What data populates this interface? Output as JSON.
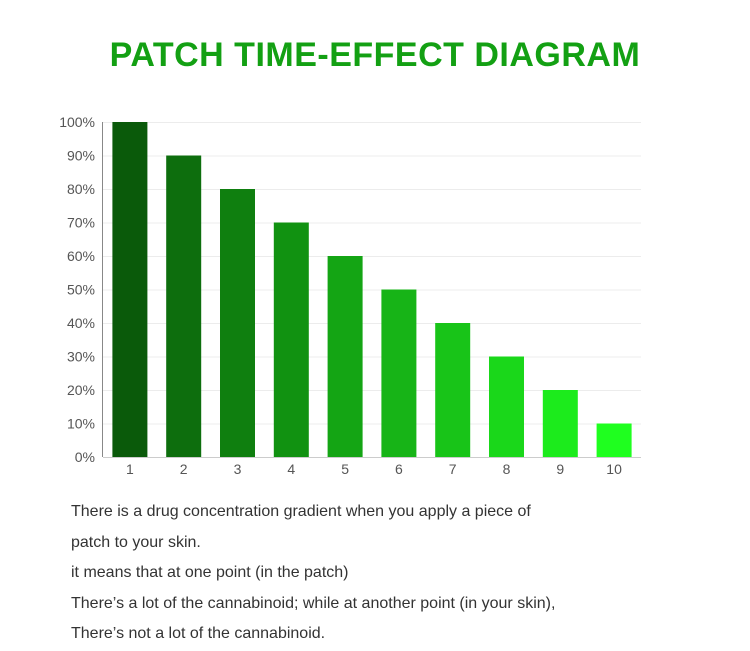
{
  "title": "PATCH TIME-EFFECT DIAGRAM",
  "chart_data": {
    "type": "bar",
    "categories": [
      "1",
      "2",
      "3",
      "4",
      "5",
      "6",
      "7",
      "8",
      "9",
      "10"
    ],
    "values": [
      100,
      90,
      80,
      70,
      60,
      50,
      40,
      30,
      20,
      10
    ],
    "ylim": [
      0,
      100
    ],
    "yticks": [
      "0%",
      "10%",
      "20%",
      "30%",
      "40%",
      "50%",
      "60%",
      "70%",
      "80%",
      "90%",
      "100%"
    ],
    "grid": true,
    "colors": [
      "#0a5a0a",
      "#0d6e0d",
      "#0f7f0f",
      "#119211",
      "#14a514",
      "#17b417",
      "#18c418",
      "#1ad71a",
      "#1ceb1c",
      "#1fff1f"
    ]
  },
  "caption": [
    "There is a drug concentration gradient when you apply a piece of",
    "patch to your skin.",
    "it means that at one point (in the patch)",
    "There’s a lot of the cannabinoid; while at another point (in your skin),",
    "There’s not a lot of the cannabinoid."
  ]
}
